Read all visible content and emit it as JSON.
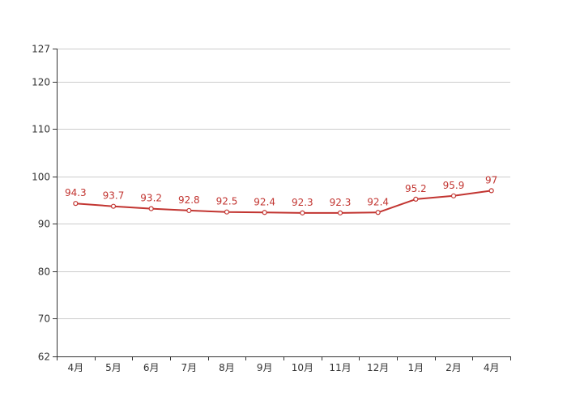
{
  "chart_data": {
    "type": "line",
    "title": "",
    "xlabel": "",
    "ylabel": "",
    "categories": [
      "4月",
      "5月",
      "6月",
      "7月",
      "8月",
      "9月",
      "10月",
      "11月",
      "12月",
      "1月",
      "2月",
      "4月"
    ],
    "series": [
      {
        "values": [
          94.3,
          93.7,
          93.2,
          92.8,
          92.5,
          92.4,
          92.3,
          92.3,
          92.4,
          95.2,
          95.9,
          97
        ],
        "labels": [
          "94.3",
          "93.7",
          "93.2",
          "92.8",
          "92.5",
          "92.4",
          "92.3",
          "92.3",
          "92.4",
          "95.2",
          "95.9",
          "97"
        ]
      }
    ],
    "ylim": [
      62,
      127
    ],
    "yticks": [
      62,
      70,
      80,
      90,
      100,
      110,
      120,
      127
    ],
    "ytick_labels": [
      "62",
      "70",
      "80",
      "90",
      "100",
      "110",
      "120",
      "127"
    ],
    "grid": true,
    "legend": "none",
    "colors": {
      "series": "#c23531",
      "grid": "#cccccc",
      "axis": "#333333"
    }
  }
}
